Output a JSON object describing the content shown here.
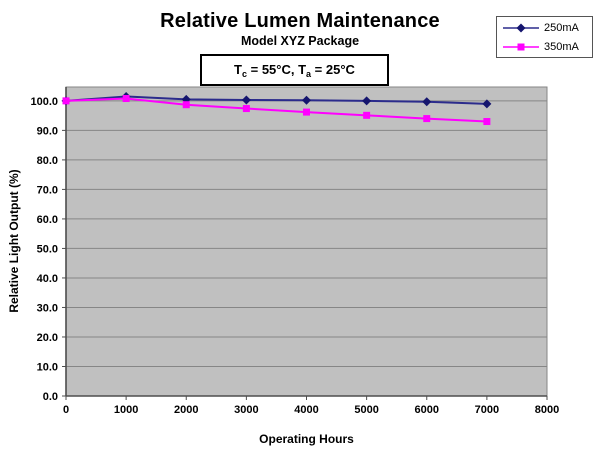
{
  "chart_data": {
    "type": "line",
    "title": "Relative Lumen Maintenance",
    "subtitle": "Model XYZ Package",
    "annotation": {
      "segments": [
        {
          "text": "T"
        },
        {
          "text": "c",
          "sub": true
        },
        {
          "text": " = 55°C, T"
        },
        {
          "text": "a",
          "sub": true
        },
        {
          "text": " = 25°C"
        }
      ]
    },
    "xlabel": "Operating Hours",
    "ylabel": "Relative Light Output (%)",
    "x": [
      0,
      1000,
      2000,
      3000,
      4000,
      5000,
      6000,
      7000
    ],
    "series": [
      {
        "name": "250mA",
        "color": "#2b2b8c",
        "marker": "diamond",
        "marker_color": "#15156e",
        "values": [
          100.0,
          101.5,
          100.5,
          100.3,
          100.2,
          100.0,
          99.7,
          99.0
        ]
      },
      {
        "name": "350mA",
        "color": "#ff00ff",
        "marker": "square",
        "marker_color": "#ff00ff",
        "values": [
          100.0,
          100.8,
          98.7,
          97.4,
          96.2,
          95.1,
          94.0,
          93.0
        ]
      }
    ],
    "xlim": [
      0,
      8000
    ],
    "ylim": [
      0,
      104.7
    ],
    "xticks": [
      0,
      1000,
      2000,
      3000,
      4000,
      5000,
      6000,
      7000,
      8000
    ],
    "yticks": [
      0,
      10,
      20,
      30,
      40,
      50,
      60,
      70,
      80,
      90,
      100
    ],
    "ytick_decimals": 1,
    "grid": "horizontal",
    "legend_position": "top-right",
    "colors": {
      "plot_bg": "#c0c0c0",
      "grid": "#868686",
      "axis": "#4d4d4d",
      "text": "#000000"
    }
  }
}
